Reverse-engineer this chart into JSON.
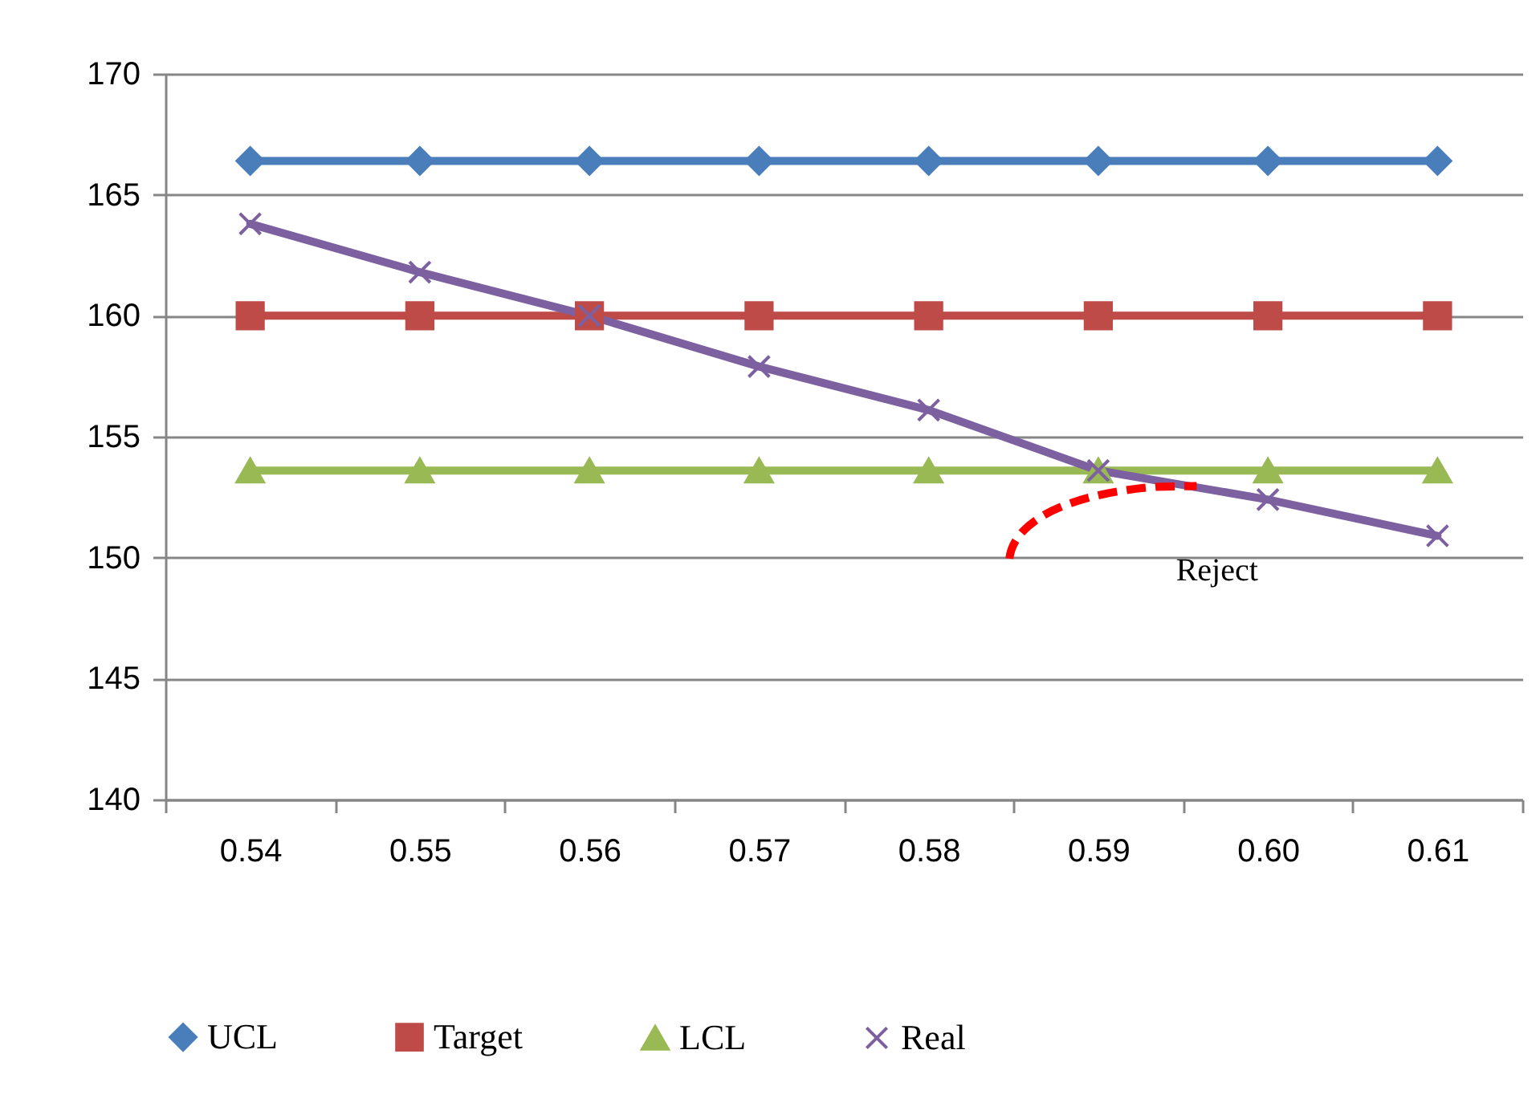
{
  "chart_data": {
    "type": "line",
    "categories": [
      "0.54",
      "0.55",
      "0.56",
      "0.57",
      "0.58",
      "0.59",
      "0.60",
      "0.61"
    ],
    "series": [
      {
        "name": "UCL",
        "color": "#4a7ebb",
        "marker": "diamond",
        "values": [
          166.4,
          166.4,
          166.4,
          166.4,
          166.4,
          166.4,
          166.4,
          166.4
        ]
      },
      {
        "name": "Target",
        "color": "#be4b48",
        "marker": "square",
        "values": [
          160,
          160,
          160,
          160,
          160,
          160,
          160,
          160
        ]
      },
      {
        "name": "LCL",
        "color": "#98b954",
        "marker": "triangle",
        "values": [
          153.6,
          153.6,
          153.6,
          153.6,
          153.6,
          153.6,
          153.6,
          153.6
        ]
      },
      {
        "name": "Real",
        "color": "#7d60a0",
        "marker": "cross",
        "values": [
          163.8,
          161.8,
          160,
          157.9,
          156.1,
          153.6,
          152.4,
          150.9
        ]
      }
    ],
    "ylim": [
      140,
      170
    ],
    "yticks": [
      140,
      145,
      150,
      155,
      160,
      165,
      170
    ],
    "grid": "y",
    "legend": "bottom",
    "line_style": "solid",
    "annotations": [
      "Reject"
    ]
  }
}
